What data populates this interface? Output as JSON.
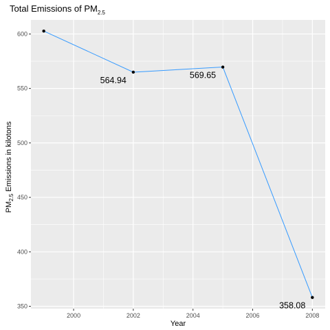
{
  "chart_data": {
    "type": "line",
    "title": {
      "main": "Total Emissions of PM",
      "sub": "2.5"
    },
    "xlabel": "Year",
    "ylabel": {
      "pre": "PM",
      "sub": "2.5",
      "post": " Emissions in kilotons"
    },
    "x": [
      1999,
      2002,
      2005,
      2008
    ],
    "series": [
      {
        "values": [
          602.7,
          564.94,
          569.65,
          358.08
        ]
      }
    ],
    "data_labels": [
      {
        "x": 2002,
        "y": 564.94,
        "text": "564.94"
      },
      {
        "x": 2005,
        "y": 569.65,
        "text": "569.65"
      },
      {
        "x": 2008,
        "y": 358.08,
        "text": "358.08"
      }
    ],
    "xticks": [
      2000,
      2002,
      2004,
      2006,
      2008
    ],
    "yticks": [
      350,
      400,
      450,
      500,
      550,
      600
    ],
    "xlim": [
      1998.57,
      2008.43
    ],
    "ylim": [
      347.8,
      612.9
    ],
    "grid": true,
    "colors": {
      "panel": "#EBEBEB",
      "grid": "#FFFFFF",
      "line": "#3399FF",
      "point": "#000000"
    }
  }
}
